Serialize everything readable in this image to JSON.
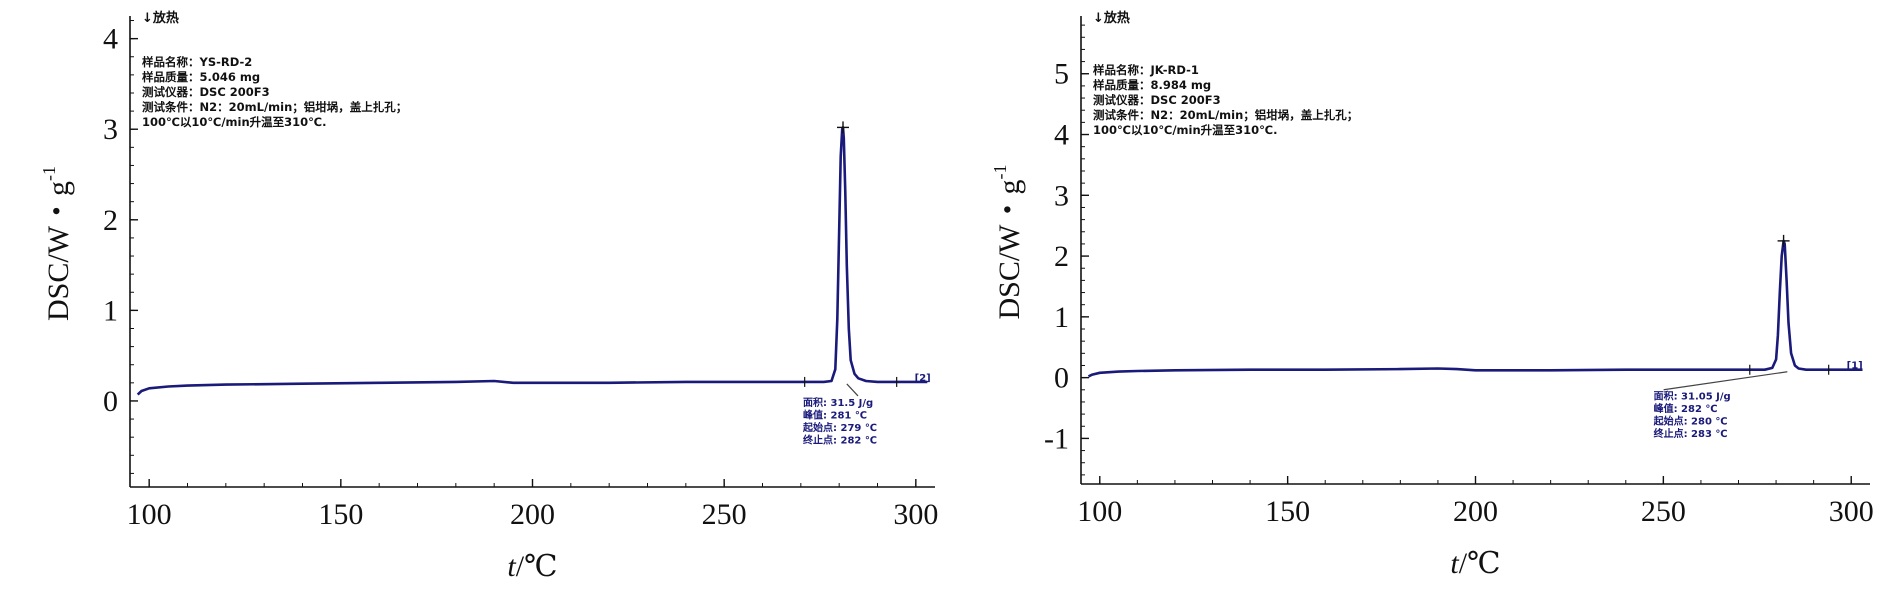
{
  "chart_data": [
    {
      "type": "line",
      "direction_label": "↓放热",
      "info": [
        "样品名称：YS-RD-2",
        "样品质量：5.046 mg",
        "测试仪器：DSC 200F3",
        "测试条件：N2：20mL/min；铝坩埚，盖上扎孔；",
        "100℃以10℃/min升温至310℃."
      ],
      "xlabel_italic": "t",
      "xlabel_rest": "/℃",
      "ylabel": "DSC/W・g",
      "ylabel_sup": "-1",
      "xlim": [
        95,
        305
      ],
      "ylim": [
        -0.95,
        4.25
      ],
      "xticks": [
        100,
        150,
        200,
        250,
        300
      ],
      "yticks": [
        0,
        1,
        2,
        3,
        4
      ],
      "peak": {
        "x": 281,
        "y": 3.02
      },
      "series": [
        {
          "x": [
            97,
            98,
            100,
            105,
            110,
            120,
            140,
            160,
            180,
            190,
            195,
            200,
            220,
            240,
            260,
            270,
            276,
            278,
            279,
            279.5,
            280,
            280.4,
            280.8,
            281,
            281.2,
            281.6,
            282,
            282.5,
            283,
            284,
            285,
            287,
            290,
            300,
            303
          ],
          "y": [
            0.07,
            0.11,
            0.14,
            0.16,
            0.17,
            0.18,
            0.19,
            0.2,
            0.21,
            0.22,
            0.2,
            0.2,
            0.2,
            0.21,
            0.21,
            0.21,
            0.21,
            0.22,
            0.35,
            0.9,
            1.9,
            2.7,
            3.0,
            3.02,
            2.9,
            2.3,
            1.5,
            0.8,
            0.45,
            0.3,
            0.25,
            0.22,
            0.21,
            0.21,
            0.21
          ]
        }
      ],
      "baseline_ticks_x": [
        271,
        295
      ],
      "tag": "[2]",
      "annotation": {
        "leader_x": 282,
        "lines": [
          "面积:    31.5 J/g",
          "峰值:    281 ℃",
          "起始点: 279 ℃",
          "终止点: 282 ℃"
        ]
      }
    },
    {
      "type": "line",
      "direction_label": "↓放热",
      "info": [
        "样品名称：JK-RD-1",
        "样品质量：8.984 mg",
        "测试仪器：DSC 200F3",
        "测试条件：N2：20mL/min；铝坩埚，盖上扎孔；",
        "100℃以10℃/min升温至310℃."
      ],
      "xlabel_italic": "t",
      "xlabel_rest": "/℃",
      "ylabel": "DSC/W・g",
      "ylabel_sup": "-1",
      "xlim": [
        95,
        305
      ],
      "ylim": [
        -1.75,
        5.95
      ],
      "xticks": [
        100,
        150,
        200,
        250,
        300
      ],
      "yticks": [
        -1,
        0,
        1,
        2,
        3,
        4,
        5
      ],
      "peak": {
        "x": 282,
        "y": 2.25
      },
      "series": [
        {
          "x": [
            97,
            98,
            100,
            105,
            110,
            120,
            140,
            160,
            180,
            190,
            195,
            200,
            220,
            240,
            260,
            270,
            277,
            279,
            280,
            280.5,
            281,
            281.5,
            282,
            282.3,
            282.8,
            283.3,
            284,
            285,
            286,
            288,
            290,
            300,
            303
          ],
          "y": [
            0.02,
            0.05,
            0.08,
            0.1,
            0.11,
            0.12,
            0.13,
            0.13,
            0.14,
            0.15,
            0.14,
            0.12,
            0.12,
            0.13,
            0.13,
            0.13,
            0.13,
            0.16,
            0.3,
            0.7,
            1.4,
            2.0,
            2.25,
            2.2,
            1.6,
            0.9,
            0.4,
            0.2,
            0.15,
            0.13,
            0.13,
            0.13,
            0.13
          ]
        }
      ],
      "baseline_ticks_x": [
        273,
        294
      ],
      "tag": "[1]",
      "annotation": {
        "leader_x": 283,
        "lines": [
          "面积:    31.05 J/g",
          "峰值:    282 ℃",
          "起始点: 280 ℃",
          "终止点: 283 ℃"
        ]
      }
    }
  ]
}
